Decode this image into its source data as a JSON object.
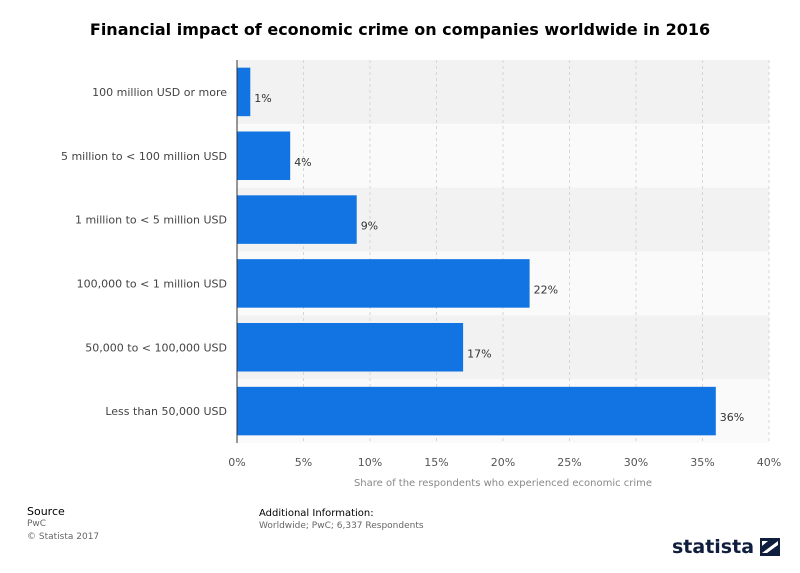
{
  "chart_data": {
    "type": "bar",
    "orientation": "horizontal",
    "title": "Financial impact of economic crime on companies worldwide in 2016",
    "categories": [
      "100 million USD or more",
      "5 million to < 100 million USD",
      "1 million to < 5 million USD",
      "100,000 to < 1 million USD",
      "50,000 to < 100,000 USD",
      "Less than 50,000 USD"
    ],
    "values": [
      1,
      4,
      9,
      22,
      17,
      36
    ],
    "value_labels": [
      "1%",
      "4%",
      "9%",
      "22%",
      "17%",
      "36%"
    ],
    "xlabel": "Share of the respondents who experienced economic crime",
    "ylabel": "",
    "xlim": [
      0,
      40
    ],
    "xticks": [
      0,
      5,
      10,
      15,
      20,
      25,
      30,
      35,
      40
    ],
    "xtick_labels": [
      "0%",
      "5%",
      "10%",
      "15%",
      "20%",
      "25%",
      "30%",
      "35%",
      "40%"
    ],
    "grid": true,
    "bar_color": "#1273e3"
  },
  "source": {
    "heading": "Source",
    "name": "PwC",
    "copyright": "© Statista 2017"
  },
  "additional": {
    "heading": "Additional Information:",
    "text": "Worldwide; PwC; 6,337 Respondents"
  },
  "brand": {
    "name": "statista",
    "color": "#0f1e3d"
  }
}
